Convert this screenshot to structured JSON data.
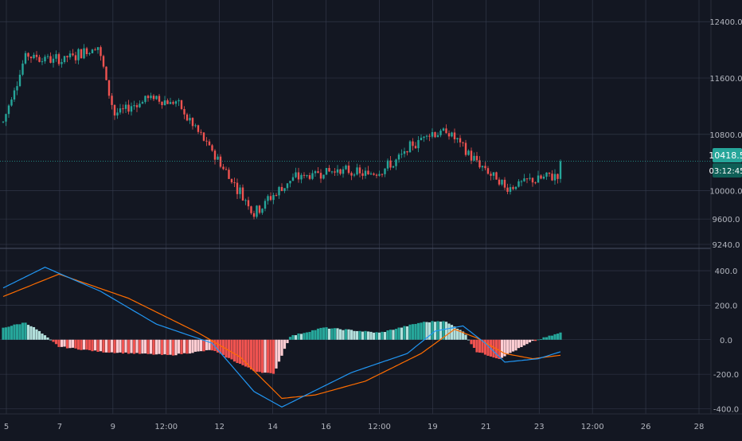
{
  "colors": {
    "background": "#131722",
    "grid": "#363c4e",
    "axis_text": "#b2b5be",
    "up": "#26a69a",
    "down": "#ef5350",
    "macd_line": "#2196f3",
    "signal_line": "#ff6d00",
    "hist_up_strong": "#26a69a",
    "hist_up_weak": "#b2dfdb",
    "hist_down_strong": "#ef5350",
    "hist_down_weak": "#ffcdd2",
    "price_line": "#26a69a"
  },
  "price_axis": {
    "ticks": [
      "12400.0",
      "11600.0",
      "10800.0",
      "10000.0",
      "9600.0",
      "9240.0"
    ],
    "tick_values": [
      12400,
      11600,
      10800,
      10000,
      9600,
      9240
    ],
    "current_price_label": "10418.5",
    "countdown_label": "03:12:45"
  },
  "macd_axis": {
    "ticks": [
      "400.0",
      "200.0",
      "0.0",
      "-200.0",
      "-400.0"
    ],
    "tick_values": [
      400,
      200,
      0,
      -200,
      -400
    ]
  },
  "time_axis": {
    "labels": [
      "5",
      "7",
      "9",
      "12:00",
      "12",
      "14",
      "16",
      "12:00",
      "19",
      "21",
      "23",
      "12:00",
      "26",
      "28"
    ]
  },
  "chart_data": [
    {
      "type": "candlestick",
      "title": "",
      "ylim": [
        9240,
        12650
      ],
      "current_price": 10418.5,
      "anchors_high_low": [
        [
          0,
          11900,
          10050
        ],
        [
          8,
          12350,
          11500
        ],
        [
          20,
          12100,
          11600
        ],
        [
          34,
          12200,
          11900
        ],
        [
          40,
          11000,
          11150
        ],
        [
          52,
          11400,
          11250
        ],
        [
          62,
          11050,
          11450
        ],
        [
          76,
          10300,
          10700
        ],
        [
          90,
          9400,
          10000
        ],
        [
          104,
          10300,
          10050
        ],
        [
          118,
          10400,
          10200
        ],
        [
          130,
          10150,
          10300
        ],
        [
          140,
          10450,
          10300
        ],
        [
          152,
          10950,
          10700
        ],
        [
          160,
          10900,
          10750
        ],
        [
          170,
          10300,
          10500
        ],
        [
          180,
          10000,
          10100
        ],
        [
          190,
          10200,
          10100
        ],
        [
          200,
          10050,
          10420
        ]
      ]
    },
    {
      "type": "line",
      "indicator": "MACD",
      "ylim": [
        -430,
        520
      ],
      "macd_anchors": [
        [
          0,
          300
        ],
        [
          15,
          420
        ],
        [
          35,
          280
        ],
        [
          55,
          90
        ],
        [
          75,
          -20
        ],
        [
          90,
          -300
        ],
        [
          100,
          -390
        ],
        [
          110,
          -310
        ],
        [
          125,
          -190
        ],
        [
          145,
          -80
        ],
        [
          155,
          50
        ],
        [
          165,
          80
        ],
        [
          173,
          -20
        ],
        [
          180,
          -130
        ],
        [
          192,
          -110
        ],
        [
          200,
          -70
        ]
      ],
      "signal_anchors": [
        [
          0,
          250
        ],
        [
          20,
          380
        ],
        [
          45,
          240
        ],
        [
          70,
          40
        ],
        [
          85,
          -100
        ],
        [
          100,
          -340
        ],
        [
          112,
          -320
        ],
        [
          130,
          -240
        ],
        [
          150,
          -80
        ],
        [
          162,
          60
        ],
        [
          170,
          10
        ],
        [
          180,
          -80
        ],
        [
          190,
          -110
        ],
        [
          200,
          -90
        ]
      ],
      "histogram_anchors": [
        [
          0,
          70
        ],
        [
          8,
          100
        ],
        [
          12,
          60
        ],
        [
          20,
          -40
        ],
        [
          35,
          -70
        ],
        [
          60,
          -90
        ],
        [
          75,
          -60
        ],
        [
          90,
          -180
        ],
        [
          97,
          -200
        ],
        [
          103,
          20
        ],
        [
          115,
          70
        ],
        [
          135,
          40
        ],
        [
          150,
          100
        ],
        [
          158,
          110
        ],
        [
          165,
          50
        ],
        [
          170,
          -70
        ],
        [
          178,
          -110
        ],
        [
          190,
          -10
        ],
        [
          194,
          10
        ],
        [
          200,
          40
        ]
      ]
    }
  ]
}
